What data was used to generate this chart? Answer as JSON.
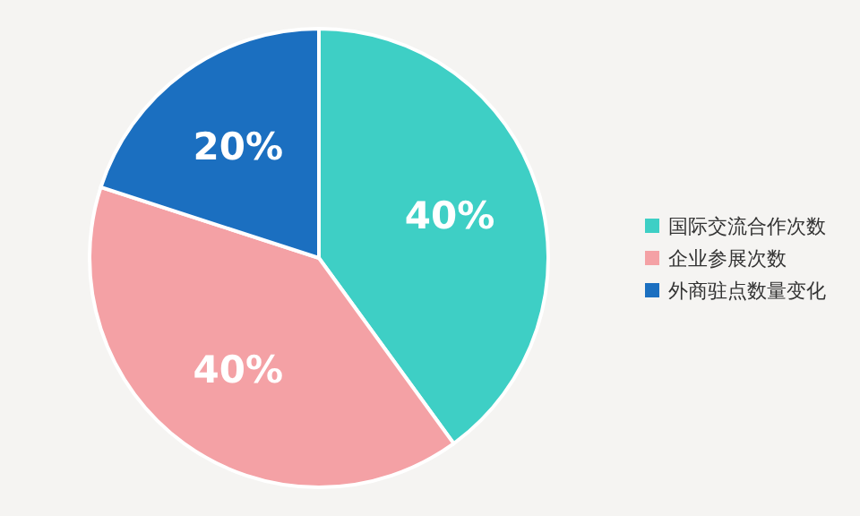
{
  "chart_data": {
    "type": "pie",
    "categories": [
      "国际交流合作次数",
      "企业参展次数",
      "外商驻点数量变化"
    ],
    "values": [
      40,
      40,
      20
    ],
    "colors": [
      "#3ecfc5",
      "#f4a1a5",
      "#1b6fc0"
    ],
    "value_labels": [
      "40%",
      "40%",
      "20%"
    ],
    "legend": "right"
  }
}
